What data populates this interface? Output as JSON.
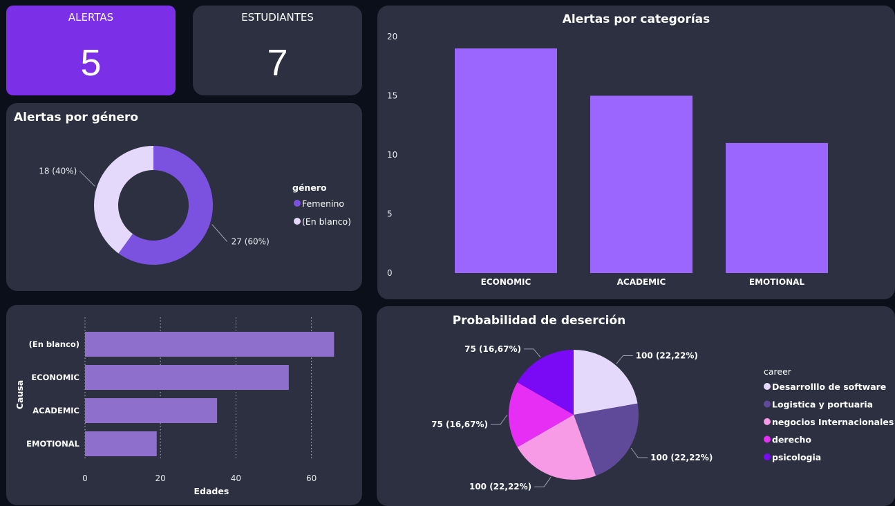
{
  "kpis": [
    {
      "label": "ALERTAS",
      "value": "5"
    },
    {
      "label": "ESTUDIANTES",
      "value": "7"
    }
  ],
  "colors": {
    "background": "#0b0f19",
    "card": "#2c3040",
    "accent": "#7b2fe6",
    "bar_purple": "#9b66fe",
    "bar_lavender": "#8e70cc"
  },
  "chart_data": [
    {
      "id": "gender",
      "type": "pie",
      "donut": true,
      "title": "Alertas por género",
      "legend_title": "género",
      "legend_position": "right",
      "slices": [
        {
          "label": "Femenino",
          "value": 27,
          "data_label": "27 (60%)",
          "color": "#7b52e0"
        },
        {
          "label": "(En blanco)",
          "value": 18,
          "data_label": "18 (40%)",
          "color": "#e4d9fb"
        }
      ]
    },
    {
      "id": "categories",
      "type": "bar",
      "title": "Alertas por categorías",
      "categories": [
        "ECONOMIC",
        "ACADEMIC",
        "EMOTIONAL"
      ],
      "values": [
        19,
        15,
        11
      ],
      "ylim": [
        0,
        20
      ],
      "yticks": [
        "0",
        "5",
        "10",
        "15",
        "20"
      ],
      "xlabel": "",
      "ylabel": "",
      "grid": false
    },
    {
      "id": "causa",
      "type": "bar",
      "orientation": "horizontal",
      "title": "",
      "categories": [
        "(En blanco)",
        "ECONOMIC",
        "ACADEMIC",
        "EMOTIONAL"
      ],
      "values": [
        66,
        54,
        35,
        19
      ],
      "xlim": [
        0,
        73
      ],
      "xticks": [
        "0",
        "20",
        "40",
        "60"
      ],
      "xlabel": "Edades",
      "ylabel": "Causa",
      "grid": true
    },
    {
      "id": "desercion",
      "type": "pie",
      "title": "Probabilidad de deserción",
      "legend_title": "career",
      "legend_position": "right",
      "slices": [
        {
          "label": "Desarrolllo de software",
          "value": 100,
          "data_label": "100 (22,22%)",
          "color": "#e4d9fb"
        },
        {
          "label": "Logistica y portuaria",
          "value": 100,
          "data_label": "100 (22,22%)",
          "color": "#5f4a99"
        },
        {
          "label": "negocios Internacionales",
          "value": 100,
          "data_label": "100 (22,22%)",
          "color": "#f79be6"
        },
        {
          "label": "derecho",
          "value": 75,
          "data_label": "75 (16,67%)",
          "color": "#e62ef5"
        },
        {
          "label": "psicologia",
          "value": 75,
          "data_label": "75 (16,67%)",
          "color": "#7a0af5"
        }
      ]
    }
  ]
}
